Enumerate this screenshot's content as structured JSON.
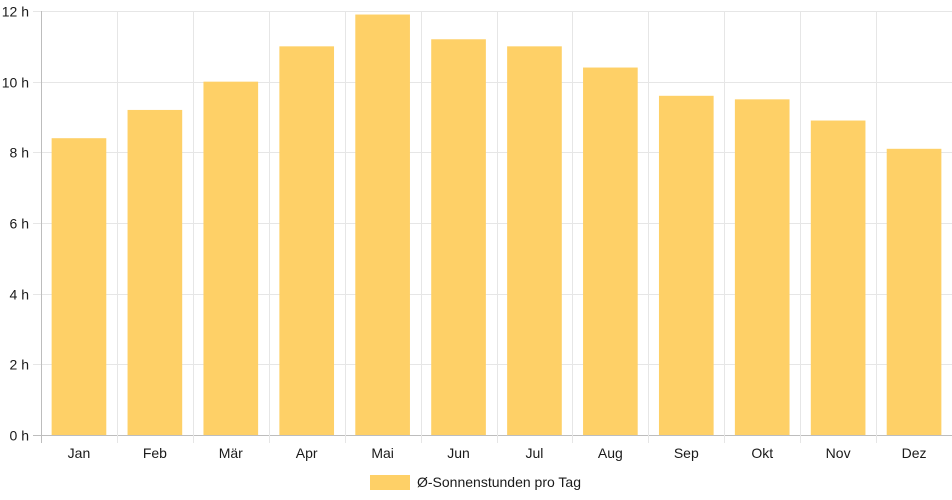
{
  "chart_data": {
    "type": "bar",
    "categories": [
      "Jan",
      "Feb",
      "Mär",
      "Apr",
      "Mai",
      "Jun",
      "Jul",
      "Aug",
      "Sep",
      "Okt",
      "Nov",
      "Dez"
    ],
    "series": [
      {
        "name": "Ø-Sonnenstunden pro Tag",
        "values": [
          8.4,
          9.2,
          10.0,
          11.0,
          11.9,
          11.2,
          11.0,
          10.4,
          9.6,
          9.5,
          8.9,
          8.1
        ],
        "color": "#fed067"
      }
    ],
    "y_ticks": [
      "0 h",
      "2 h",
      "4 h",
      "6 h",
      "8 h",
      "10 h",
      "12 h"
    ],
    "ylim": [
      0,
      12
    ],
    "grid": true,
    "legend_position": "bottom"
  }
}
